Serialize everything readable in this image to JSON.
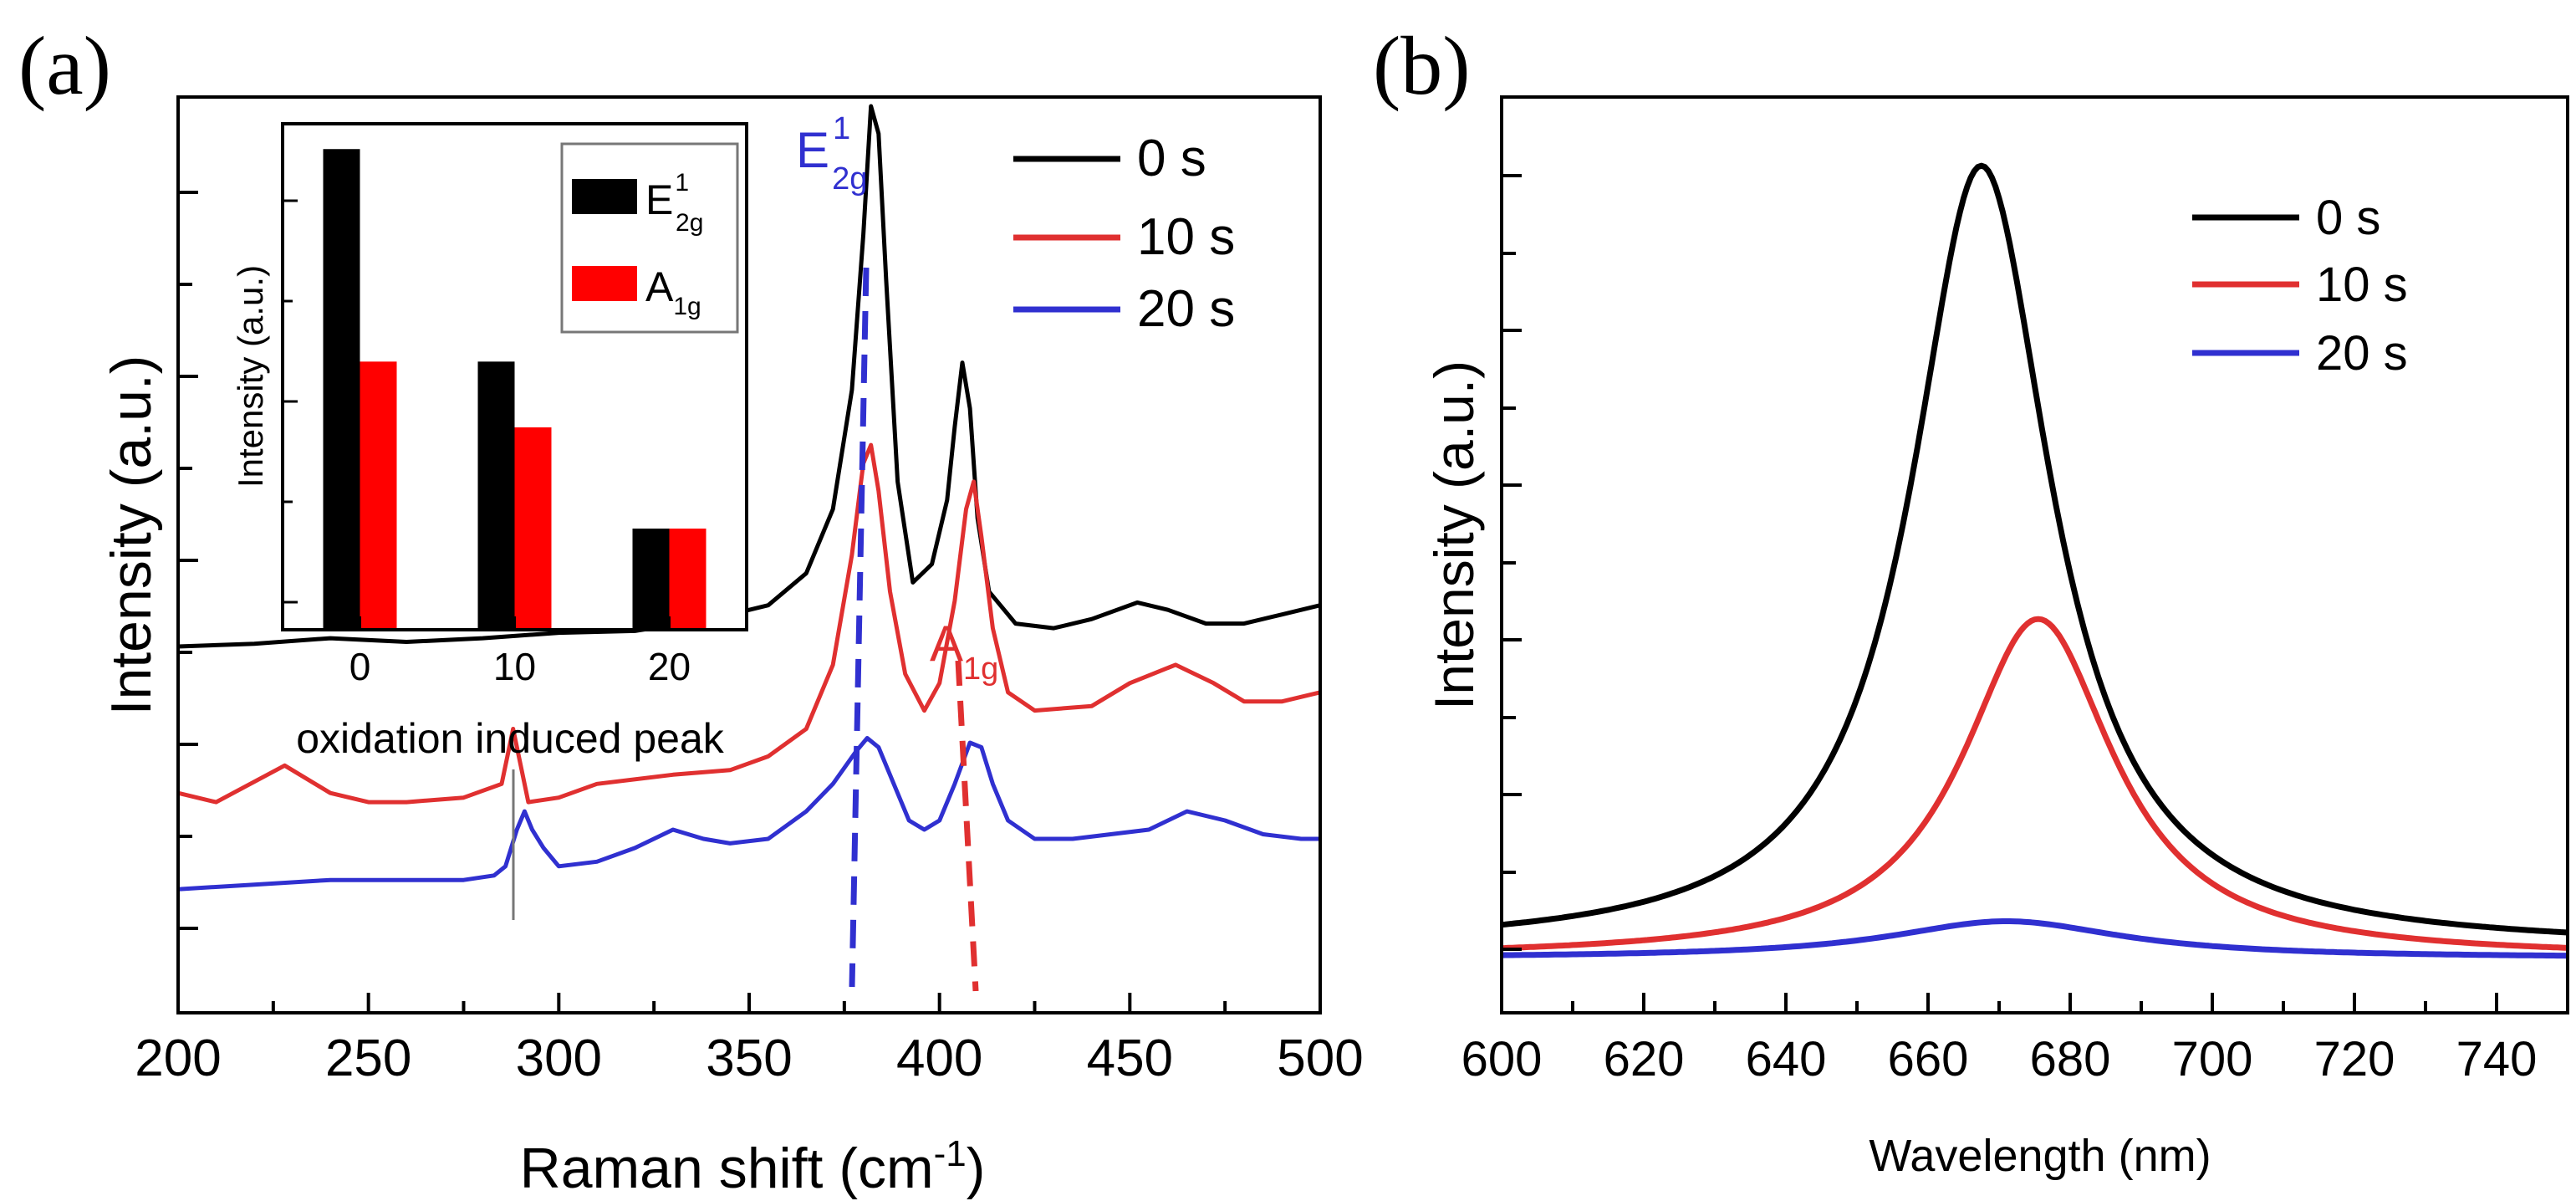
{
  "chart_data": [
    {
      "panel_label": "(a)",
      "type": "line",
      "xlabel": "Raman shift (cm",
      "xlabel_sup": "-1",
      "xlabel_end": ")",
      "ylabel": "Intensity (a.u.)",
      "xlim": [
        200,
        500
      ],
      "ylim": [
        0,
        100
      ],
      "xticks": [
        "200",
        "250",
        "300",
        "350",
        "400",
        "450",
        "500"
      ],
      "legend_position": "top-right",
      "series": [
        {
          "name": "0 s",
          "color": "#000000",
          "points": [
            [
              200,
              40
            ],
            [
              220,
              40.3
            ],
            [
              240,
              40.9
            ],
            [
              260,
              40.5
            ],
            [
              280,
              40.9
            ],
            [
              300,
              41.5
            ],
            [
              320,
              41.7
            ],
            [
              340,
              43
            ],
            [
              355,
              44.5
            ],
            [
              365,
              48
            ],
            [
              372,
              55
            ],
            [
              377,
              68
            ],
            [
              380,
              85
            ],
            [
              382,
              99
            ],
            [
              384,
              96
            ],
            [
              386,
              80
            ],
            [
              389,
              58
            ],
            [
              393,
              47
            ],
            [
              398,
              49
            ],
            [
              402,
              56
            ],
            [
              404,
              64
            ],
            [
              406,
              71
            ],
            [
              408,
              66
            ],
            [
              410,
              54
            ],
            [
              413,
              46
            ],
            [
              420,
              42.5
            ],
            [
              430,
              42
            ],
            [
              440,
              43
            ],
            [
              452,
              44.8
            ],
            [
              460,
              44
            ],
            [
              470,
              42.5
            ],
            [
              480,
              42.5
            ],
            [
              490,
              43.5
            ],
            [
              500,
              44.5
            ]
          ]
        },
        {
          "name": "10 s",
          "color": "#e03030",
          "points": [
            [
              200,
              24
            ],
            [
              210,
              23
            ],
            [
              228,
              27
            ],
            [
              240,
              24
            ],
            [
              250,
              23
            ],
            [
              260,
              23
            ],
            [
              275,
              23.5
            ],
            [
              285,
              25
            ],
            [
              288,
              31
            ],
            [
              290,
              27
            ],
            [
              292,
              23
            ],
            [
              300,
              23.5
            ],
            [
              310,
              25
            ],
            [
              330,
              26
            ],
            [
              345,
              26.5
            ],
            [
              355,
              28
            ],
            [
              365,
              31
            ],
            [
              372,
              38
            ],
            [
              377,
              50
            ],
            [
              380,
              60
            ],
            [
              382,
              62
            ],
            [
              384,
              57
            ],
            [
              387,
              46
            ],
            [
              391,
              37
            ],
            [
              396,
              33
            ],
            [
              400,
              36
            ],
            [
              404,
              45
            ],
            [
              407,
              55
            ],
            [
              409,
              58
            ],
            [
              411,
              52
            ],
            [
              414,
              42
            ],
            [
              418,
              35
            ],
            [
              425,
              33
            ],
            [
              440,
              33.5
            ],
            [
              450,
              36
            ],
            [
              462,
              38
            ],
            [
              472,
              36
            ],
            [
              480,
              34
            ],
            [
              490,
              34
            ],
            [
              500,
              35
            ]
          ]
        },
        {
          "name": "20 s",
          "color": "#3030d0",
          "points": [
            [
              200,
              13.5
            ],
            [
              220,
              14
            ],
            [
              240,
              14.5
            ],
            [
              260,
              14.5
            ],
            [
              275,
              14.5
            ],
            [
              283,
              15
            ],
            [
              286,
              16
            ],
            [
              289,
              20
            ],
            [
              291,
              22
            ],
            [
              293,
              20
            ],
            [
              296,
              18
            ],
            [
              300,
              16
            ],
            [
              310,
              16.5
            ],
            [
              320,
              18
            ],
            [
              330,
              20
            ],
            [
              338,
              19
            ],
            [
              345,
              18.5
            ],
            [
              355,
              19
            ],
            [
              365,
              22
            ],
            [
              372,
              25
            ],
            [
              378,
              28.5
            ],
            [
              381,
              30
            ],
            [
              384,
              29
            ],
            [
              388,
              25
            ],
            [
              392,
              21
            ],
            [
              396,
              20
            ],
            [
              400,
              21
            ],
            [
              404,
              25
            ],
            [
              408,
              29.5
            ],
            [
              411,
              29
            ],
            [
              414,
              25
            ],
            [
              418,
              21
            ],
            [
              425,
              19
            ],
            [
              435,
              19
            ],
            [
              445,
              19.5
            ],
            [
              455,
              20
            ],
            [
              465,
              22
            ],
            [
              475,
              21
            ],
            [
              485,
              19.5
            ],
            [
              495,
              19
            ],
            [
              500,
              19
            ]
          ]
        }
      ],
      "peak_labels": [
        {
          "main": "E",
          "sup": "1",
          "sub": "2g",
          "color": "#3030d0",
          "x": 380
        },
        {
          "main": "A",
          "sub": "1g",
          "color": "#e03030",
          "x": 411
        }
      ],
      "annotation_line_x": 287,
      "inset": {
        "type": "bar",
        "ylabel": "Intensity (a.u.)",
        "xlabel": "oxidation induced peak",
        "categories": [
          "0",
          "10",
          "20"
        ],
        "ylim": [
          0,
          100
        ],
        "series": [
          {
            "name": "E",
            "sup": "1",
            "sub": "2g",
            "color": "#000000",
            "values": [
              95,
              53,
              20
            ]
          },
          {
            "name": "A",
            "sub": "1g",
            "color": "#ff0000",
            "values": [
              53,
              40,
              20
            ]
          }
        ]
      }
    },
    {
      "panel_label": "(b)",
      "type": "line",
      "xlabel": "Wavelength (nm)",
      "ylabel": "Intensity (a.u.)",
      "xlim": [
        600,
        750
      ],
      "ylim": [
        0,
        100
      ],
      "xticks": [
        "600",
        "620",
        "640",
        "660",
        "680",
        "700",
        "720",
        "740"
      ],
      "legend_position": "top-right",
      "series": [
        {
          "name": "0 s",
          "color": "#000000",
          "peak_x": 667.5,
          "amplitude": 85.5,
          "width": 12,
          "baseline": 7
        },
        {
          "name": "10 s",
          "color": "#e03030",
          "peak_x": 675.5,
          "amplitude": 37,
          "width": 13,
          "baseline": 6
        },
        {
          "name": "20 s",
          "color": "#3030d0",
          "peak_x": 671,
          "amplitude": 4,
          "width": 20,
          "baseline": 6
        }
      ]
    }
  ]
}
